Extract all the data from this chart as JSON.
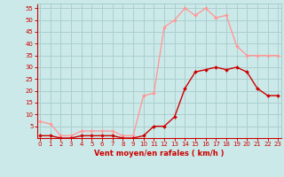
{
  "x": [
    0,
    1,
    2,
    3,
    4,
    5,
    6,
    7,
    8,
    9,
    10,
    11,
    12,
    13,
    14,
    15,
    16,
    17,
    18,
    19,
    20,
    21,
    22,
    23
  ],
  "gusts": [
    7,
    6,
    1,
    1,
    3,
    3,
    3,
    3,
    1,
    1,
    18,
    19,
    47,
    50,
    55,
    52,
    55,
    51,
    52,
    39,
    35,
    35,
    35,
    35
  ],
  "mean": [
    1,
    1,
    0,
    0,
    1,
    1,
    1,
    1,
    0,
    0,
    1,
    5,
    5,
    9,
    21,
    28,
    29,
    30,
    29,
    30,
    28,
    21,
    18,
    18
  ],
  "bg_color": "#cce9e9",
  "grid_color": "#aacfcf",
  "line_gust_color": "#ff9999",
  "line_mean_color": "#cc0000",
  "marker_color_gust": "#ff9999",
  "marker_color_mean": "#cc0000",
  "xlabel": "Vent moyen/en rafales ( km/h )",
  "xlabel_color": "#cc0000",
  "ylim": [
    0,
    57
  ],
  "yticks": [
    5,
    10,
    15,
    20,
    25,
    30,
    35,
    40,
    45,
    50,
    55
  ],
  "xticks": [
    0,
    1,
    2,
    3,
    4,
    5,
    6,
    7,
    8,
    9,
    10,
    11,
    12,
    13,
    14,
    15,
    16,
    17,
    18,
    19,
    20,
    21,
    22,
    23
  ],
  "tick_color": "#cc0000",
  "axis_color": "#cc0000",
  "tick_fontsize": 5.0,
  "xlabel_fontsize": 6.0
}
